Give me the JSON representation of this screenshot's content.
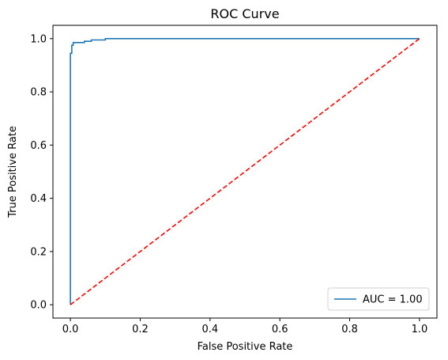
{
  "chart_data": {
    "type": "line",
    "title": "ROC Curve",
    "xlabel": "False Positive Rate",
    "ylabel": "True Positive Rate",
    "xlim": [
      -0.05,
      1.05
    ],
    "ylim": [
      -0.05,
      1.05
    ],
    "xticks": [
      0.0,
      0.2,
      0.4,
      0.6,
      0.8,
      1.0
    ],
    "yticks": [
      0.0,
      0.2,
      0.4,
      0.6,
      0.8,
      1.0
    ],
    "xtick_labels": [
      "0.0",
      "0.2",
      "0.4",
      "0.6",
      "0.8",
      "1.0"
    ],
    "ytick_labels": [
      "0.0",
      "0.2",
      "0.4",
      "0.6",
      "0.8",
      "1.0"
    ],
    "grid": false,
    "legend_position": "lower-right",
    "series": [
      {
        "name": "AUC = 1.00",
        "color": "#1f77b4",
        "style": "solid",
        "x": [
          0.0,
          0.0,
          0.004,
          0.004,
          0.008,
          0.008,
          0.04,
          0.04,
          0.06,
          0.06,
          0.1,
          0.1,
          1.0
        ],
        "y": [
          0.0,
          0.945,
          0.945,
          0.975,
          0.975,
          0.985,
          0.985,
          0.99,
          0.99,
          0.995,
          0.995,
          1.0,
          1.0
        ]
      },
      {
        "name": "",
        "color": "#ff0000",
        "style": "dashed",
        "x": [
          0.0,
          1.0
        ],
        "y": [
          0.0,
          1.0
        ]
      }
    ]
  }
}
